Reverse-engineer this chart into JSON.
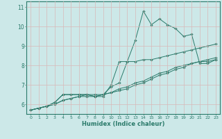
{
  "xlabel": "Humidex (Indice chaleur)",
  "background_color": "#cce8e8",
  "grid_color": "#d8b8b8",
  "line_color": "#2a7a6a",
  "axis_color": "#2a7a6a",
  "xlim": [
    -0.5,
    23.5
  ],
  "ylim": [
    5.5,
    11.3
  ],
  "xticks": [
    0,
    1,
    2,
    3,
    4,
    5,
    6,
    7,
    8,
    9,
    10,
    11,
    12,
    13,
    14,
    15,
    16,
    17,
    18,
    19,
    20,
    21,
    22,
    23
  ],
  "yticks": [
    6,
    7,
    8,
    9,
    10,
    11
  ],
  "series": [
    [
      5.7,
      5.8,
      5.9,
      6.1,
      6.5,
      6.5,
      6.5,
      6.5,
      6.4,
      6.4,
      7.0,
      8.2,
      8.2,
      9.3,
      10.8,
      10.1,
      10.4,
      10.1,
      9.9,
      9.5,
      9.6,
      8.1,
      8.1,
      8.3
    ],
    [
      5.7,
      5.8,
      5.9,
      6.1,
      6.5,
      6.5,
      6.5,
      6.5,
      6.4,
      6.5,
      6.9,
      7.1,
      8.2,
      8.2,
      8.3,
      8.3,
      8.4,
      8.5,
      8.6,
      8.7,
      8.8,
      8.9,
      9.0,
      9.1
    ],
    [
      5.7,
      5.8,
      5.9,
      6.0,
      6.2,
      6.3,
      6.4,
      6.4,
      6.4,
      6.5,
      6.6,
      6.7,
      6.8,
      7.0,
      7.1,
      7.3,
      7.5,
      7.6,
      7.8,
      7.9,
      8.1,
      8.2,
      8.3,
      8.4
    ],
    [
      5.7,
      5.8,
      5.9,
      6.0,
      6.2,
      6.3,
      6.4,
      6.5,
      6.5,
      6.5,
      6.6,
      6.8,
      6.9,
      7.1,
      7.2,
      7.4,
      7.6,
      7.7,
      7.9,
      8.0,
      8.1,
      8.2,
      8.2,
      8.3
    ]
  ]
}
